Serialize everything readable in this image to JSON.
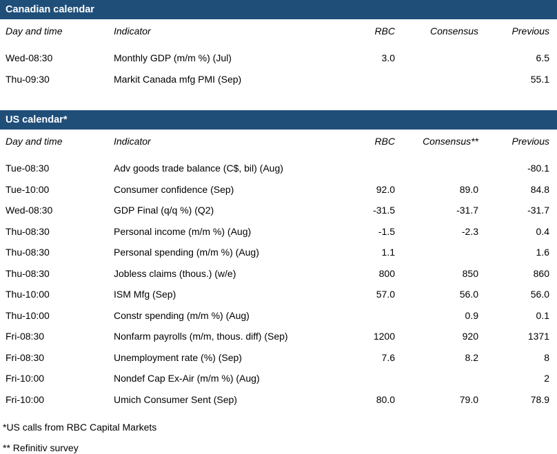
{
  "accent_color": "#1f4e79",
  "tables": [
    {
      "title": "Canadian calendar",
      "columns": [
        "Day and time",
        "Indicator",
        "RBC",
        "Consensus",
        "Previous"
      ],
      "rows": [
        [
          "Wed-08:30",
          "Monthly GDP (m/m %) (Jul)",
          "3.0",
          "",
          "6.5"
        ],
        [
          "Thu-09:30",
          "Markit Canada mfg PMI (Sep)",
          "",
          "",
          "55.1"
        ]
      ]
    },
    {
      "title": "US calendar*",
      "columns": [
        "Day and time",
        "Indicator",
        "RBC",
        "Consensus**",
        "Previous"
      ],
      "rows": [
        [
          "Tue-08:30",
          "Adv goods trade balance (C$, bil) (Aug)",
          "",
          "",
          "-80.1"
        ],
        [
          "Tue-10:00",
          "Consumer confidence (Sep)",
          "92.0",
          "89.0",
          "84.8"
        ],
        [
          "Wed-08:30",
          "GDP Final (q/q %) (Q2)",
          "-31.5",
          "-31.7",
          "-31.7"
        ],
        [
          "Thu-08:30",
          "Personal income (m/m %) (Aug)",
          "-1.5",
          "-2.3",
          "0.4"
        ],
        [
          "Thu-08:30",
          "Personal spending (m/m %) (Aug)",
          "1.1",
          "",
          "1.6"
        ],
        [
          "Thu-08:30",
          "Jobless claims (thous.) (w/e)",
          "800",
          "850",
          "860"
        ],
        [
          "Thu-10:00",
          "ISM Mfg (Sep)",
          "57.0",
          "56.0",
          "56.0"
        ],
        [
          "Thu-10:00",
          "Constr spending (m/m %) (Aug)",
          "",
          "0.9",
          "0.1"
        ],
        [
          "Fri-08:30",
          "Nonfarm payrolls (m/m, thous. diff) (Sep)",
          "1200",
          "920",
          "1371"
        ],
        [
          "Fri-08:30",
          "Unemployment rate (%) (Sep)",
          "7.6",
          "8.2",
          "8"
        ],
        [
          "Fri-10:00",
          "Nondef Cap Ex-Air (m/m %) (Aug)",
          "",
          "",
          "2"
        ],
        [
          "Fri-10:00",
          "Umich Consumer Sent (Sep)",
          "80.0",
          "79.0",
          "78.9"
        ]
      ]
    }
  ],
  "footnotes": [
    "*US calls from RBC Capital Markets",
    "** Refinitiv survey"
  ]
}
